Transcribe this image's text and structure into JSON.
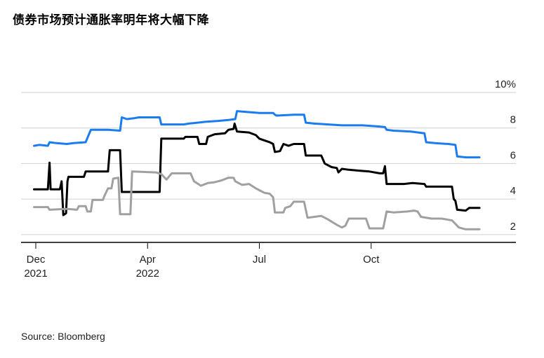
{
  "header": {
    "title": "债券市场预计通胀率明年将大幅下降"
  },
  "footer": {
    "source": "Source: Bloomberg"
  },
  "chart_data": {
    "type": "line",
    "ylim": [
      1.6,
      10
    ],
    "xlim": [
      0,
      13.0
    ],
    "grid": true,
    "y_ticks": [
      {
        "value": 10,
        "label": "10%"
      },
      {
        "value": 8,
        "label": "8"
      },
      {
        "value": 6,
        "label": "6"
      },
      {
        "value": 4,
        "label": "4"
      },
      {
        "value": 2,
        "label": "2"
      }
    ],
    "x_ticks": [
      {
        "value": 0,
        "label": "Dec",
        "sublabel": "2021"
      },
      {
        "value": 3.25,
        "label": "Apr",
        "sublabel": "2022"
      },
      {
        "value": 6.5,
        "label": "Jul",
        "sublabel": ""
      },
      {
        "value": 9.75,
        "label": "Oct",
        "sublabel": ""
      }
    ],
    "series": [
      {
        "color": "#1a7cf0",
        "points": [
          [
            -0.05,
            7.0
          ],
          [
            0.1,
            7.05
          ],
          [
            0.35,
            7.0
          ],
          [
            0.4,
            7.2
          ],
          [
            0.6,
            7.15
          ],
          [
            0.9,
            7.1
          ],
          [
            1.1,
            7.15
          ],
          [
            1.45,
            7.2
          ],
          [
            1.6,
            7.9
          ],
          [
            2.1,
            7.9
          ],
          [
            2.45,
            7.85
          ],
          [
            2.5,
            8.6
          ],
          [
            2.65,
            8.5
          ],
          [
            2.85,
            8.55
          ],
          [
            3.0,
            8.6
          ],
          [
            3.6,
            8.6
          ],
          [
            3.65,
            8.2
          ],
          [
            4.0,
            8.2
          ],
          [
            4.3,
            8.2
          ],
          [
            4.45,
            8.25
          ],
          [
            4.7,
            8.3
          ],
          [
            4.95,
            8.35
          ],
          [
            5.3,
            8.4
          ],
          [
            5.6,
            8.45
          ],
          [
            5.8,
            8.5
          ],
          [
            5.85,
            8.95
          ],
          [
            6.15,
            8.9
          ],
          [
            6.5,
            8.85
          ],
          [
            6.9,
            8.85
          ],
          [
            6.95,
            8.75
          ],
          [
            7.0,
            8.7
          ],
          [
            7.5,
            8.75
          ],
          [
            7.8,
            8.75
          ],
          [
            7.85,
            8.3
          ],
          [
            8.1,
            8.25
          ],
          [
            8.5,
            8.2
          ],
          [
            8.9,
            8.15
          ],
          [
            9.2,
            8.15
          ],
          [
            9.5,
            8.15
          ],
          [
            9.9,
            8.1
          ],
          [
            10.15,
            8.05
          ],
          [
            10.2,
            7.9
          ],
          [
            10.4,
            7.85
          ],
          [
            10.9,
            7.8
          ],
          [
            11.3,
            7.7
          ],
          [
            11.35,
            7.2
          ],
          [
            11.6,
            7.15
          ],
          [
            12.0,
            7.1
          ],
          [
            12.2,
            7.05
          ],
          [
            12.25,
            6.4
          ],
          [
            12.5,
            6.35
          ],
          [
            12.9,
            6.35
          ]
        ]
      },
      {
        "color": "#000000",
        "points": [
          [
            -0.05,
            4.55
          ],
          [
            0.35,
            4.55
          ],
          [
            0.4,
            6.05
          ],
          [
            0.43,
            4.55
          ],
          [
            0.55,
            4.55
          ],
          [
            0.6,
            4.55
          ],
          [
            0.7,
            4.55
          ],
          [
            0.75,
            5.0
          ],
          [
            0.8,
            3.1
          ],
          [
            0.88,
            3.2
          ],
          [
            0.92,
            5.0
          ],
          [
            0.95,
            5.25
          ],
          [
            1.4,
            5.25
          ],
          [
            1.45,
            5.55
          ],
          [
            2.1,
            5.55
          ],
          [
            2.15,
            6.75
          ],
          [
            2.45,
            6.75
          ],
          [
            2.5,
            4.4
          ],
          [
            3.6,
            4.4
          ],
          [
            3.65,
            7.4
          ],
          [
            4.3,
            7.4
          ],
          [
            4.35,
            7.5
          ],
          [
            4.7,
            7.5
          ],
          [
            4.75,
            7.1
          ],
          [
            4.95,
            7.1
          ],
          [
            5.0,
            7.5
          ],
          [
            5.2,
            7.65
          ],
          [
            5.5,
            7.7
          ],
          [
            5.6,
            7.9
          ],
          [
            5.75,
            7.95
          ],
          [
            5.78,
            8.25
          ],
          [
            5.85,
            7.8
          ],
          [
            6.2,
            7.75
          ],
          [
            6.4,
            7.6
          ],
          [
            6.5,
            7.4
          ],
          [
            6.8,
            7.2
          ],
          [
            6.9,
            7.1
          ],
          [
            6.95,
            6.65
          ],
          [
            7.1,
            6.7
          ],
          [
            7.2,
            7.1
          ],
          [
            7.35,
            7.0
          ],
          [
            7.5,
            7.1
          ],
          [
            7.8,
            7.1
          ],
          [
            7.85,
            6.45
          ],
          [
            8.3,
            6.45
          ],
          [
            8.4,
            6.0
          ],
          [
            8.6,
            5.8
          ],
          [
            8.75,
            5.75
          ],
          [
            8.8,
            5.5
          ],
          [
            8.9,
            5.7
          ],
          [
            9.1,
            5.65
          ],
          [
            9.4,
            5.6
          ],
          [
            9.7,
            5.55
          ],
          [
            10.0,
            5.45
          ],
          [
            10.1,
            5.45
          ],
          [
            10.15,
            5.85
          ],
          [
            10.2,
            4.85
          ],
          [
            10.7,
            4.85
          ],
          [
            10.95,
            4.9
          ],
          [
            11.3,
            4.85
          ],
          [
            11.35,
            4.7
          ],
          [
            11.6,
            4.7
          ],
          [
            12.0,
            4.7
          ],
          [
            12.1,
            4.7
          ],
          [
            12.15,
            4.0
          ],
          [
            12.2,
            3.9
          ],
          [
            12.25,
            3.4
          ],
          [
            12.5,
            3.35
          ],
          [
            12.6,
            3.5
          ],
          [
            12.9,
            3.5
          ]
        ]
      },
      {
        "color": "#a0a0a0",
        "points": [
          [
            -0.05,
            3.55
          ],
          [
            0.35,
            3.55
          ],
          [
            0.4,
            3.4
          ],
          [
            0.9,
            3.45
          ],
          [
            1.2,
            3.4
          ],
          [
            1.25,
            3.6
          ],
          [
            1.45,
            3.6
          ],
          [
            1.5,
            3.3
          ],
          [
            1.6,
            3.3
          ],
          [
            1.65,
            3.95
          ],
          [
            1.95,
            3.95
          ],
          [
            2.0,
            4.2
          ],
          [
            2.1,
            4.6
          ],
          [
            2.2,
            4.6
          ],
          [
            2.25,
            5.15
          ],
          [
            2.4,
            5.2
          ],
          [
            2.45,
            3.15
          ],
          [
            2.75,
            3.15
          ],
          [
            2.8,
            5.55
          ],
          [
            3.5,
            5.5
          ],
          [
            3.65,
            5.4
          ],
          [
            3.8,
            5.1
          ],
          [
            3.95,
            5.45
          ],
          [
            4.5,
            5.45
          ],
          [
            4.6,
            5.0
          ],
          [
            4.8,
            4.75
          ],
          [
            5.0,
            4.9
          ],
          [
            5.2,
            4.95
          ],
          [
            5.4,
            5.05
          ],
          [
            5.6,
            5.2
          ],
          [
            5.75,
            5.2
          ],
          [
            5.8,
            5.0
          ],
          [
            6.0,
            4.8
          ],
          [
            6.2,
            4.85
          ],
          [
            6.4,
            4.6
          ],
          [
            6.5,
            4.5
          ],
          [
            6.65,
            4.35
          ],
          [
            6.8,
            4.3
          ],
          [
            6.9,
            4.1
          ],
          [
            6.95,
            3.25
          ],
          [
            7.2,
            3.25
          ],
          [
            7.25,
            3.5
          ],
          [
            7.4,
            3.6
          ],
          [
            7.5,
            3.85
          ],
          [
            7.8,
            3.85
          ],
          [
            7.9,
            2.95
          ],
          [
            8.1,
            3.0
          ],
          [
            8.3,
            3.05
          ],
          [
            8.5,
            2.85
          ],
          [
            8.75,
            2.55
          ],
          [
            8.9,
            2.4
          ],
          [
            9.0,
            2.5
          ],
          [
            9.1,
            2.9
          ],
          [
            9.6,
            2.9
          ],
          [
            9.7,
            2.35
          ],
          [
            10.1,
            2.35
          ],
          [
            10.2,
            3.3
          ],
          [
            10.4,
            3.25
          ],
          [
            10.8,
            3.3
          ],
          [
            11.0,
            3.35
          ],
          [
            11.1,
            3.3
          ],
          [
            11.2,
            3.0
          ],
          [
            11.5,
            2.9
          ],
          [
            11.8,
            2.9
          ],
          [
            12.1,
            2.8
          ],
          [
            12.2,
            2.6
          ],
          [
            12.3,
            2.4
          ],
          [
            12.5,
            2.3
          ],
          [
            12.9,
            2.3
          ]
        ]
      }
    ]
  }
}
